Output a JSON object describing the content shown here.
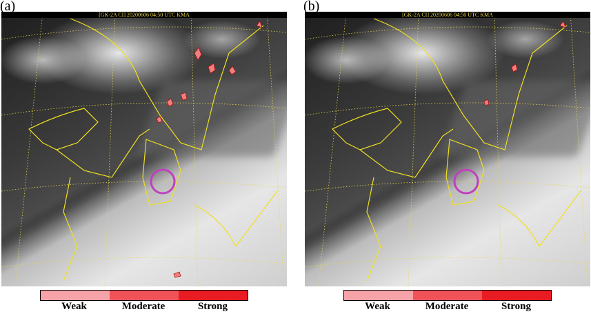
{
  "panels": [
    {
      "label": "(a)",
      "header": "[GK-2A CI] 20200606 04:50 UTC KMA"
    },
    {
      "label": "(b)",
      "header": "[GK-2A CI] 20200606 04:50 UTC KMA"
    }
  ],
  "legend": {
    "items": [
      {
        "label": "Weak",
        "color": "#f5a3a8"
      },
      {
        "label": "Moderate",
        "color": "#ef5358"
      },
      {
        "label": "Strong",
        "color": "#e81c22"
      }
    ]
  },
  "colors": {
    "coastline": "#f0e020",
    "highlight_circle": "#c040c0",
    "ci_outline": "#b01010"
  }
}
